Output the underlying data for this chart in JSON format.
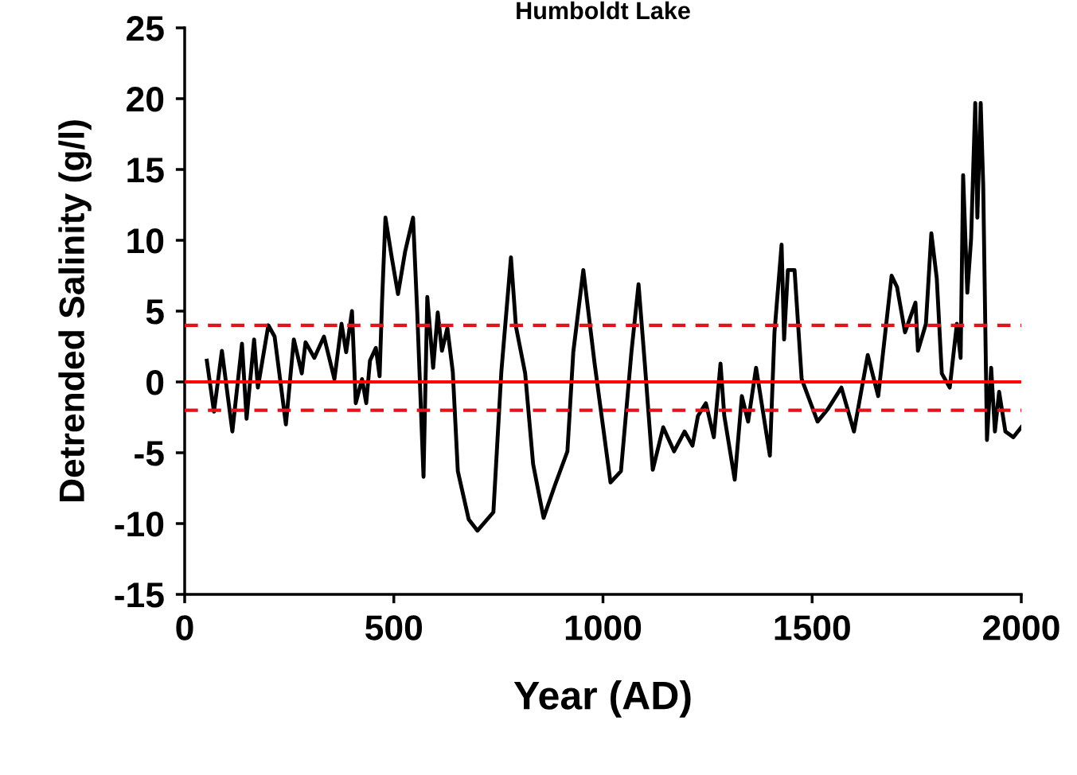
{
  "chart_data": {
    "type": "line",
    "title": "Humboldt Lake",
    "xlabel": "Year (AD)",
    "ylabel": "Detrended Salinity (g/l)",
    "series": [
      {
        "color": "#000000",
        "x": [
          53,
          70,
          89,
          114,
          137,
          148,
          166,
          175,
          200,
          215,
          242,
          261,
          280,
          289,
          310,
          333,
          358,
          375,
          386,
          400,
          409,
          424,
          434,
          443,
          457,
          466,
          472,
          480,
          495,
          510,
          527,
          546,
          556,
          571,
          580,
          594,
          605,
          615,
          628,
          641,
          653,
          679,
          700,
          738,
          757,
          780,
          792,
          814,
          833,
          858,
          885,
          915,
          929,
          953,
          980,
          1018,
          1043,
          1068,
          1085,
          1100,
          1119,
          1144,
          1170,
          1195,
          1214,
          1227,
          1246,
          1265,
          1281,
          1290,
          1315,
          1332,
          1347,
          1366,
          1399,
          1410,
          1427,
          1433,
          1442,
          1458,
          1475,
          1513,
          1538,
          1570,
          1600,
          1633,
          1658,
          1690,
          1703,
          1722,
          1747,
          1753,
          1772,
          1785,
          1798,
          1810,
          1829,
          1846,
          1855,
          1861,
          1871,
          1880,
          1890,
          1895,
          1903,
          1909,
          1918,
          1928,
          1937,
          1947,
          1962,
          1981,
          2000
        ],
        "values": [
          1.5,
          -2.1,
          2.2,
          -3.5,
          2.7,
          -2.6,
          3.0,
          -0.4,
          4.0,
          3.2,
          -3.0,
          3.0,
          0.6,
          2.8,
          1.7,
          3.2,
          0.2,
          4.1,
          2.1,
          5.0,
          -1.5,
          0.2,
          -1.5,
          1.5,
          2.4,
          0.4,
          5.8,
          11.6,
          8.8,
          6.2,
          9.2,
          11.6,
          4.9,
          -6.7,
          6.0,
          1.0,
          4.9,
          2.2,
          3.8,
          0.7,
          -6.3,
          -9.7,
          -10.5,
          -9.2,
          0.7,
          8.8,
          3.9,
          0.6,
          -5.8,
          -9.6,
          -7.3,
          -4.9,
          2.1,
          7.9,
          1.3,
          -7.1,
          -6.3,
          2.1,
          6.9,
          1.3,
          -6.2,
          -3.2,
          -4.9,
          -3.5,
          -4.5,
          -2.4,
          -1.5,
          -3.9,
          1.3,
          -2.4,
          -6.9,
          -1.0,
          -2.8,
          1.0,
          -5.2,
          3.5,
          9.7,
          3.0,
          7.9,
          7.9,
          0.2,
          -2.8,
          -1.9,
          -0.4,
          -3.5,
          1.9,
          -1.0,
          7.5,
          6.7,
          3.5,
          5.6,
          2.2,
          4.1,
          10.5,
          7.3,
          0.6,
          -0.4,
          4.1,
          1.7,
          14.6,
          6.3,
          10.1,
          19.7,
          11.6,
          19.7,
          13.9,
          -4.1,
          1.0,
          -3.5,
          -0.7,
          -3.5,
          -3.9,
          -3.2
        ]
      }
    ],
    "xlim": [
      0,
      2000
    ],
    "xticks": [
      0,
      500,
      1000,
      1500,
      2000
    ],
    "ylim": [
      -15,
      25
    ],
    "yticks": [
      -15,
      -10,
      -5,
      0,
      5,
      10,
      15,
      20,
      25
    ],
    "ref_lines": [
      {
        "axis": "y",
        "value": 0,
        "color": "#ff0000",
        "line_style": "solid"
      },
      {
        "axis": "y",
        "value": 4,
        "color": "#e0141e",
        "line_style": "dashed"
      },
      {
        "axis": "y",
        "value": -2,
        "color": "#e0141e",
        "line_style": "dashed"
      }
    ],
    "grid": false,
    "legend": false,
    "marker": "none",
    "line_style": "solid"
  }
}
